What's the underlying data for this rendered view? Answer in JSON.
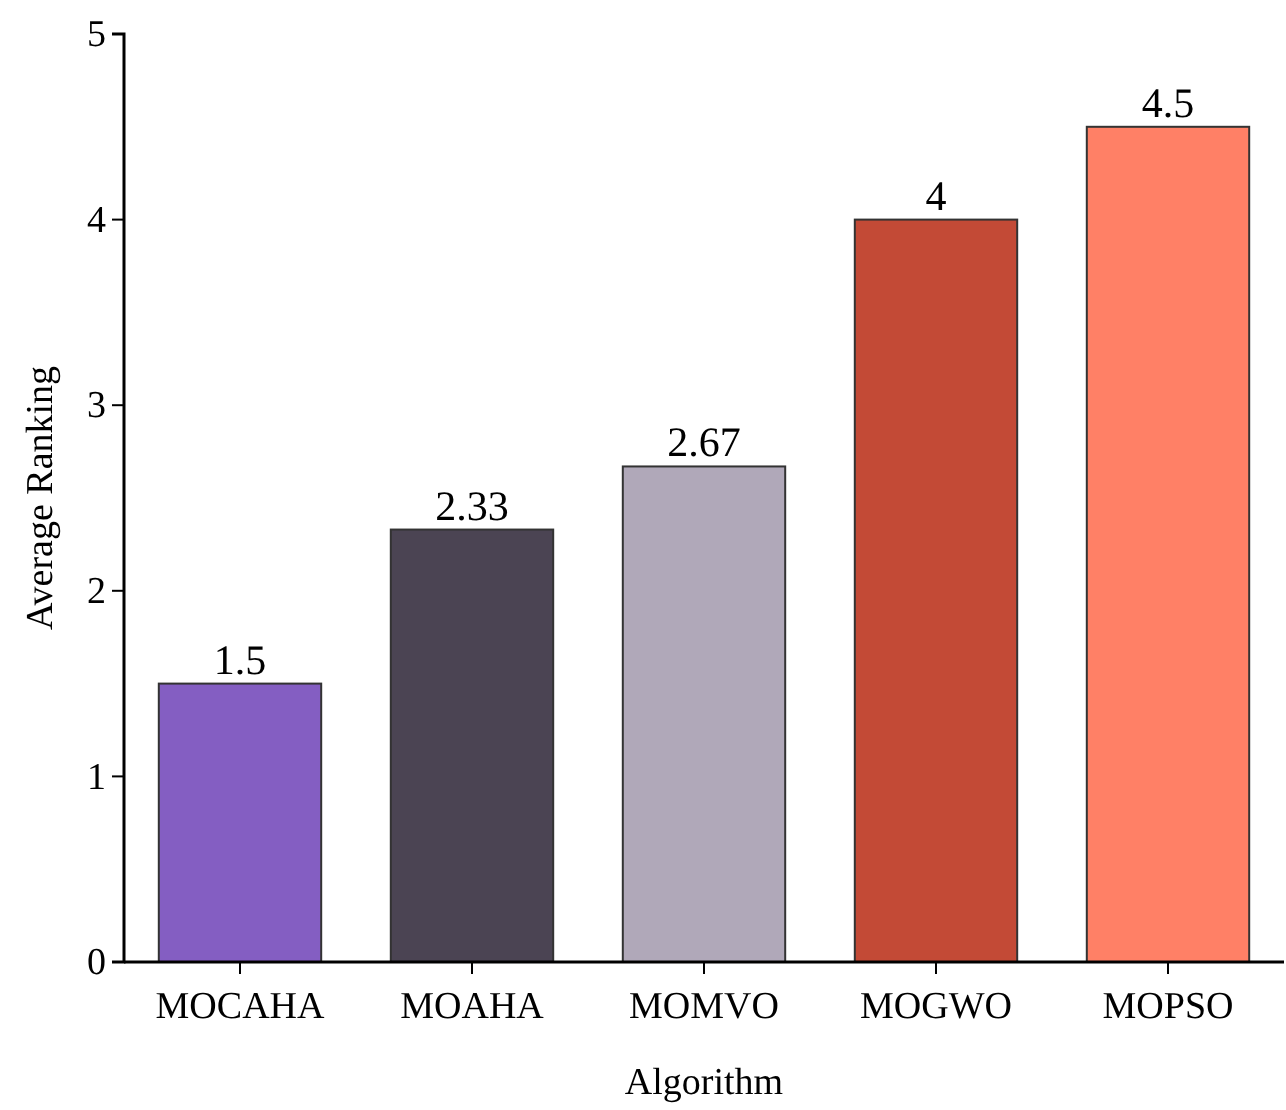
{
  "chart_data": {
    "type": "bar",
    "xlabel": "Algorithm",
    "ylabel": "Average Ranking",
    "categories": [
      "MOCAHA",
      "MOAHA",
      "MOMVO",
      "MOGWO",
      "MOPSO"
    ],
    "values": [
      1.5,
      2.33,
      2.67,
      4,
      4.5
    ],
    "colors": [
      "#845ec2",
      "#4b4453",
      "#b0a8b9",
      "#c34a36",
      "#ff8066"
    ],
    "ylim": [
      0,
      5
    ],
    "yticks": [
      0,
      1,
      2,
      3,
      4,
      5
    ],
    "data_labels": true
  }
}
